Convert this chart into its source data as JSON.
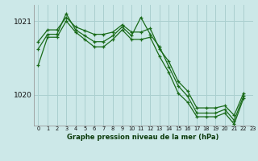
{
  "title": "Graphe pression niveau de la mer (hPa)",
  "bg_color": "#cce8e8",
  "grid_color": "#aacfcf",
  "line_color": "#1a6b1a",
  "xlim": [
    -0.5,
    23
  ],
  "ylim": [
    1019.58,
    1021.22
  ],
  "yticks": [
    1020,
    1021
  ],
  "ytick_labels": [
    "1020",
    "1021"
  ],
  "xticks": [
    0,
    1,
    2,
    3,
    4,
    5,
    6,
    7,
    8,
    9,
    10,
    11,
    12,
    13,
    14,
    15,
    16,
    17,
    18,
    19,
    20,
    21,
    22,
    23
  ],
  "line1_x": [
    0,
    1,
    2,
    3,
    4,
    5,
    6,
    7,
    8,
    9,
    10,
    11,
    12,
    13,
    14,
    15,
    16,
    17,
    18,
    19,
    20,
    21,
    22
  ],
  "line1_y": [
    1020.72,
    1020.88,
    1020.88,
    1021.05,
    1020.92,
    1020.87,
    1020.82,
    1020.82,
    1020.85,
    1020.95,
    1020.85,
    1020.85,
    1020.9,
    1020.62,
    1020.45,
    1020.18,
    1020.05,
    1019.82,
    1019.82,
    1019.82,
    1019.85,
    1019.72,
    1020.02
  ],
  "line2_x": [
    0,
    1,
    2,
    3,
    4,
    5,
    6,
    7,
    8,
    9,
    10,
    11,
    12,
    13,
    14,
    15,
    16,
    17,
    18,
    19,
    20,
    21,
    22
  ],
  "line2_y": [
    1020.62,
    1020.82,
    1020.82,
    1021.1,
    1020.88,
    1020.8,
    1020.72,
    1020.72,
    1020.8,
    1020.92,
    1020.8,
    1021.05,
    1020.82,
    1020.65,
    1020.38,
    1020.12,
    1019.98,
    1019.75,
    1019.75,
    1019.75,
    1019.8,
    1019.65,
    1019.98
  ],
  "line3_x": [
    0,
    1,
    2,
    3,
    4,
    5,
    6,
    7,
    8,
    9,
    10,
    11,
    12,
    13,
    14,
    15,
    16,
    17,
    18,
    19,
    20,
    21,
    22
  ],
  "line3_y": [
    1020.4,
    1020.78,
    1020.78,
    1021.0,
    1020.85,
    1020.75,
    1020.65,
    1020.65,
    1020.75,
    1020.88,
    1020.75,
    1020.75,
    1020.78,
    1020.52,
    1020.3,
    1020.02,
    1019.9,
    1019.7,
    1019.7,
    1019.7,
    1019.75,
    1019.6,
    1019.95
  ]
}
